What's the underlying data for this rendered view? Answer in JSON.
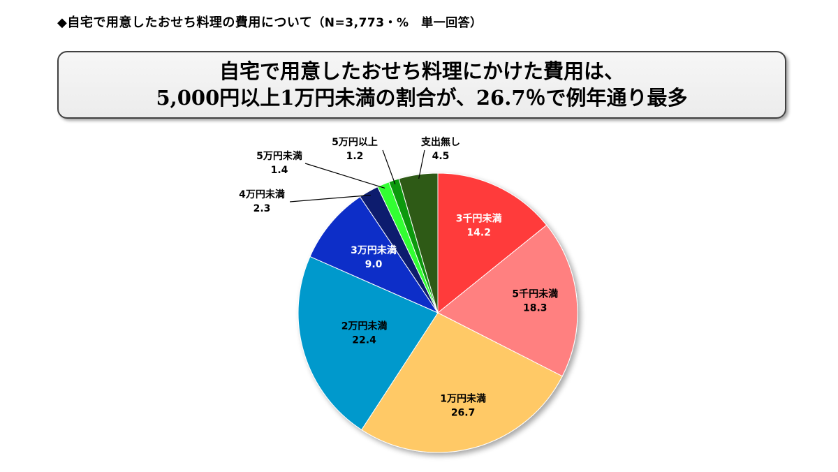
{
  "header": {
    "prefix": "◆",
    "title": "自宅で用意したおせち料理の費用について",
    "note": "（N=3,773・%　単一回答）"
  },
  "headline": {
    "line1": "自宅で用意したおせち料理にかけた費用は、",
    "line2": "5,000円以上1万円未満の割合が、26.7％で例年通り最多"
  },
  "chart_data": {
    "type": "pie",
    "start": "12 o'clock",
    "direction": "clockwise",
    "slices": [
      {
        "label": "3千円未満",
        "value": 14.2,
        "color": "#ff3b3b",
        "text_color": "#ffffff",
        "label_position": "inside"
      },
      {
        "label": "5千円未満",
        "value": 18.3,
        "color": "#ff8080",
        "text_color": "#000000",
        "label_position": "inside"
      },
      {
        "label": "1万円未満",
        "value": 26.7,
        "color": "#ffc966",
        "text_color": "#000000",
        "label_position": "inside"
      },
      {
        "label": "2万円未満",
        "value": 22.4,
        "color": "#0099cc",
        "text_color": "#000000",
        "label_position": "inside"
      },
      {
        "label": "3万円未満",
        "value": 9.0,
        "color": "#0f2fc8",
        "text_color": "#ffffff",
        "label_position": "inside"
      },
      {
        "label": "4万円未満",
        "value": 2.3,
        "color": "#0a1f6e",
        "text_color": "#000000",
        "label_position": "outside"
      },
      {
        "label": "5万円未満",
        "value": 1.4,
        "color": "#33ff33",
        "text_color": "#000000",
        "label_position": "outside"
      },
      {
        "label": "5万円以上",
        "value": 1.2,
        "color": "#119911",
        "text_color": "#000000",
        "label_position": "outside"
      },
      {
        "label": "支出無し",
        "value": 4.5,
        "color": "#2d5a12",
        "text_color": "#000000",
        "label_position": "outside"
      }
    ]
  }
}
